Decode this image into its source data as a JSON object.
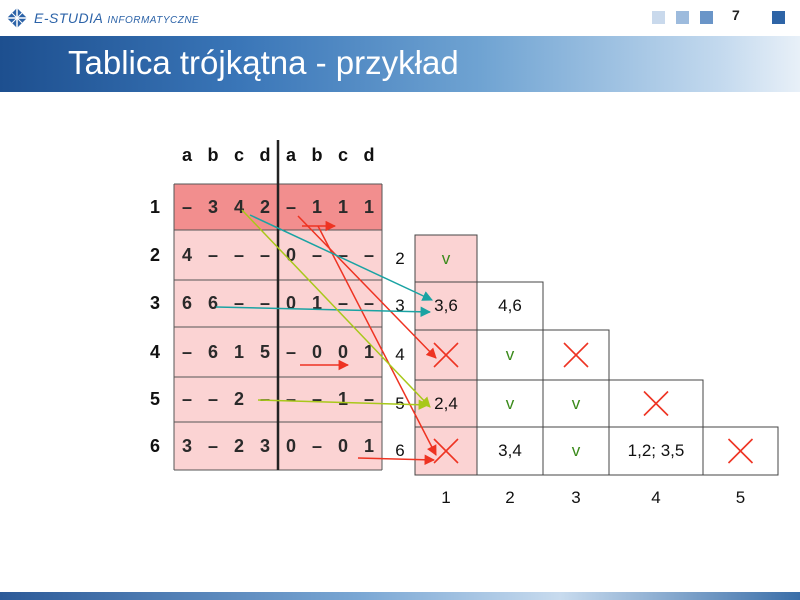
{
  "header": {
    "logo_main": "E-STUDIA",
    "logo_sub": "INFORMATYCZNE",
    "page_number": "7",
    "squares": [
      "#c9d9ec",
      "#9dbbdd",
      "#6a95c8",
      "#2e64a6"
    ]
  },
  "slide": {
    "title": "Tablica trójkątna - przykład"
  },
  "table": {
    "column_headers": [
      "a",
      "b",
      "c",
      "d",
      "a",
      "b",
      "c",
      "d"
    ],
    "row_labels": [
      "1",
      "2",
      "3",
      "4",
      "5",
      "6"
    ],
    "rows": [
      [
        "–",
        "3",
        "4",
        "2",
        "–",
        "1",
        "1",
        "1"
      ],
      [
        "4",
        "–",
        "–",
        "–",
        "0",
        "–",
        "–",
        "–"
      ],
      [
        "6",
        "6",
        "–",
        "–",
        "0",
        "1",
        "–",
        "–"
      ],
      [
        "–",
        "6",
        "1",
        "5",
        "–",
        "0",
        "0",
        "1"
      ],
      [
        "–",
        "–",
        "2",
        "–",
        "–",
        "–",
        "1",
        "–"
      ],
      [
        "3",
        "–",
        "2",
        "3",
        "0",
        "–",
        "0",
        "1"
      ]
    ],
    "highlight_row_color": "#f28e8e",
    "row_color": "#fbd3d3",
    "first_row_index": 0
  },
  "triangle": {
    "row_labels": [
      "2",
      "3",
      "4",
      "5",
      "6"
    ],
    "col_labels": [
      "1",
      "2",
      "3",
      "4",
      "5"
    ],
    "rows": [
      [
        "v"
      ],
      [
        "3,6",
        "4,6"
      ],
      [
        "X",
        "v",
        "X"
      ],
      [
        "2,4",
        "v",
        "v",
        "X"
      ],
      [
        "X",
        "3,4",
        "v",
        "1,2; 3,5",
        "X"
      ]
    ],
    "first_col_color": "#fbd3d3",
    "v_color": "#3a8a1a",
    "x_color": "#ee3322"
  },
  "colors": {
    "red_arrow": "#ee3322",
    "teal_arrow": "#1aa3a3",
    "green_arrow": "#a8c81a"
  }
}
